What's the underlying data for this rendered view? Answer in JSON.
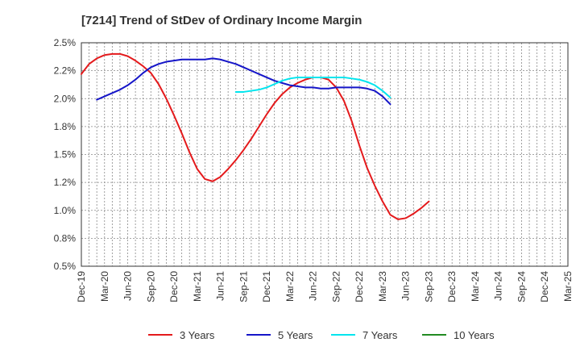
{
  "chart_data": {
    "type": "line",
    "title": "[7214]  Trend of StDev of Ordinary Income Margin",
    "xlabel": "",
    "ylabel": "",
    "x_ticks": [
      "Dec-19",
      "Mar-20",
      "Jun-20",
      "Sep-20",
      "Dec-20",
      "Mar-21",
      "Jun-21",
      "Sep-21",
      "Dec-21",
      "Mar-22",
      "Jun-22",
      "Sep-22",
      "Dec-22",
      "Mar-23",
      "Jun-23",
      "Sep-23",
      "Dec-23",
      "Mar-24",
      "Jun-24",
      "Sep-24",
      "Dec-24",
      "Mar-25"
    ],
    "y_ticks": [
      "0.5%",
      "0.8%",
      "1.0%",
      "1.2%",
      "1.5%",
      "1.8%",
      "2.0%",
      "2.2%",
      "2.5%"
    ],
    "ylim": [
      0.5,
      2.5
    ],
    "grid": true,
    "legend_position": "bottom",
    "series": [
      {
        "name": "3 Years",
        "color": "#e41a1c",
        "start_index": 0,
        "values": [
          2.22,
          2.31,
          2.36,
          2.39,
          2.4,
          2.4,
          2.38,
          2.34,
          2.29,
          2.23,
          2.13,
          2.0,
          1.85,
          1.69,
          1.52,
          1.37,
          1.28,
          1.26,
          1.3,
          1.37,
          1.45,
          1.54,
          1.64,
          1.75,
          1.86,
          1.96,
          2.04,
          2.1,
          2.14,
          2.17,
          2.19,
          2.19,
          2.17,
          2.1,
          1.98,
          1.8,
          1.58,
          1.38,
          1.22,
          1.08,
          0.96,
          0.92,
          0.93,
          0.97,
          1.02,
          1.08
        ]
      },
      {
        "name": "5 Years",
        "color": "#1515c8",
        "start_index": 2,
        "values": [
          1.99,
          2.02,
          2.05,
          2.08,
          2.12,
          2.17,
          2.23,
          2.28,
          2.31,
          2.33,
          2.34,
          2.35,
          2.35,
          2.35,
          2.35,
          2.36,
          2.35,
          2.33,
          2.31,
          2.28,
          2.25,
          2.22,
          2.19,
          2.16,
          2.14,
          2.12,
          2.11,
          2.1,
          2.1,
          2.09,
          2.09,
          2.1,
          2.1,
          2.1,
          2.1,
          2.09,
          2.07,
          2.02,
          1.95
        ]
      },
      {
        "name": "7 Years",
        "color": "#00e5ee",
        "start_index": 20,
        "values": [
          2.06,
          2.06,
          2.07,
          2.08,
          2.1,
          2.13,
          2.16,
          2.18,
          2.19,
          2.19,
          2.19,
          2.19,
          2.19,
          2.19,
          2.19,
          2.18,
          2.17,
          2.15,
          2.12,
          2.07,
          2.01
        ]
      },
      {
        "name": "10 Years",
        "color": "#228b22",
        "start_index": 0,
        "values": []
      }
    ]
  }
}
